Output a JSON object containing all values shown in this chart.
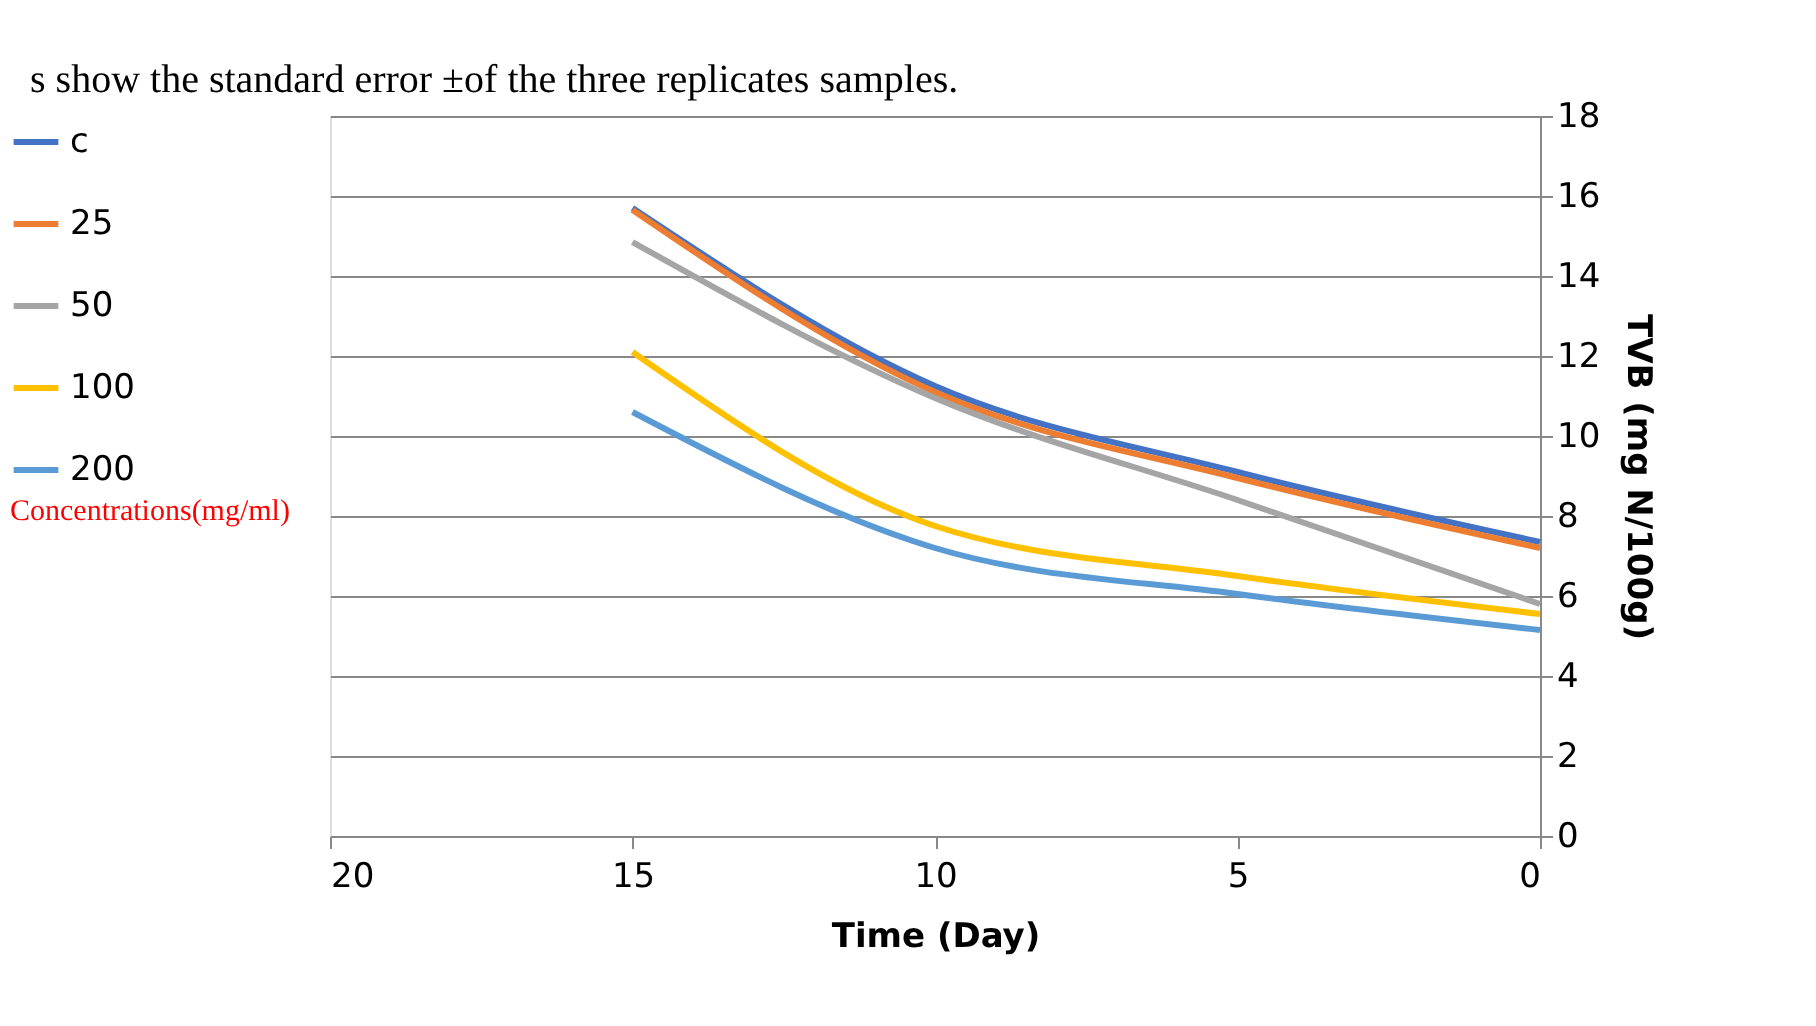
{
  "chart_data": {
    "type": "line",
    "xlabel": "Time (Day)",
    "ylabel": "TVB (mg N/100g)",
    "legend_title": "Concentrations(mg/ml)",
    "annotations": [
      "s show the standard error ±of the three replicates samples."
    ],
    "x": [
      15,
      10,
      5,
      0
    ],
    "series": [
      {
        "name": "c",
        "color": "#4472c4",
        "values": [
          15.7,
          11.25,
          9.1,
          7.35
        ]
      },
      {
        "name": "25",
        "color": "#ed7d31",
        "values": [
          15.65,
          11.1,
          8.95,
          7.2
        ]
      },
      {
        "name": "50",
        "color": "#a5a5a5",
        "values": [
          14.85,
          10.95,
          8.4,
          5.8
        ]
      },
      {
        "name": "100",
        "color": "#ffc000",
        "values": [
          12.1,
          7.75,
          6.5,
          5.55
        ]
      },
      {
        "name": "200",
        "color": "#5b9bd5",
        "values": [
          10.6,
          7.2,
          6.05,
          5.15
        ]
      }
    ],
    "xlim": [
      20,
      0
    ],
    "xticks": [
      20,
      15,
      10,
      5,
      0
    ],
    "ylim": [
      0,
      18
    ],
    "yticks": [
      0,
      2,
      4,
      6,
      8,
      10,
      12,
      14,
      16,
      18
    ],
    "grid": "y",
    "legend": "left",
    "marker": "none",
    "line_style": "solid"
  }
}
